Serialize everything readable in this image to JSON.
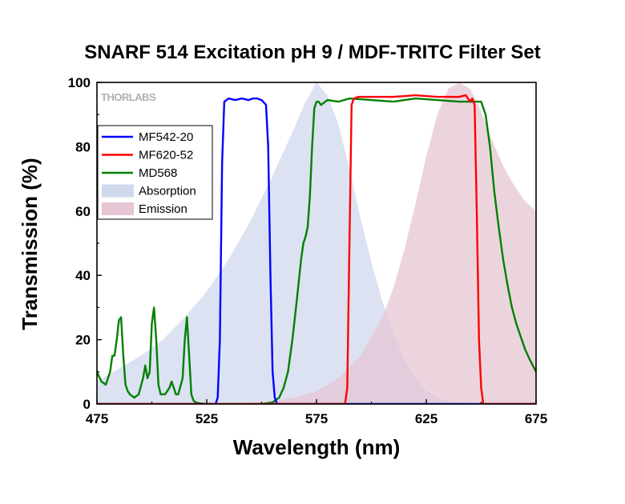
{
  "chart_data": {
    "type": "area",
    "title": "SNARF 514 Excitation pH 9 / MDF-TRITC Filter Set",
    "xlabel": "Wavelength (nm)",
    "ylabel": "Transmission (%)",
    "xlim": [
      475,
      675
    ],
    "ylim": [
      0,
      100
    ],
    "xticks": [
      475,
      525,
      575,
      625,
      675
    ],
    "yticks": [
      0,
      20,
      40,
      60,
      80,
      100
    ],
    "grid": false,
    "legend_position": "top-left",
    "watermark": "THORLABS",
    "series": [
      {
        "name": "MF542-20",
        "type": "line",
        "color": "#0000ff",
        "x": [
          475,
          529,
          530,
          531,
          532,
          533,
          535,
          538,
          541,
          544,
          546,
          548,
          550,
          552,
          553,
          554,
          555,
          556,
          557,
          675
        ],
        "y": [
          0,
          0,
          2,
          20,
          75,
          94,
          95,
          94.5,
          95,
          94.5,
          95,
          95,
          94.5,
          93,
          80,
          40,
          10,
          2,
          0,
          0
        ]
      },
      {
        "name": "MF620-52",
        "type": "line",
        "color": "#ff0000",
        "x": [
          475,
          588,
          589,
          590,
          591,
          592,
          594,
          600,
          610,
          620,
          630,
          640,
          643,
          645,
          646,
          647,
          648,
          649,
          650,
          651,
          675
        ],
        "y": [
          0,
          0,
          5,
          50,
          93,
          95,
          95.5,
          95.5,
          95.5,
          96,
          95.5,
          95.5,
          96,
          94,
          95,
          93,
          60,
          20,
          5,
          0,
          0
        ]
      },
      {
        "name": "MD568",
        "type": "line",
        "color": "#008000",
        "x": [
          475,
          477,
          479,
          481,
          482,
          483,
          484,
          485,
          486,
          487,
          488,
          489,
          490,
          492,
          494,
          496,
          497,
          498,
          499,
          500,
          501,
          502,
          503,
          504,
          506,
          508,
          509,
          510,
          511,
          512,
          514,
          515,
          516,
          517,
          518,
          519,
          520,
          522,
          525,
          530,
          535,
          540,
          545,
          550,
          555,
          558,
          560,
          562,
          564,
          566,
          568,
          569,
          570,
          571,
          572,
          573,
          574,
          575,
          576,
          577,
          580,
          585,
          590,
          600,
          610,
          620,
          630,
          640,
          645,
          650,
          652,
          654,
          656,
          658,
          660,
          662,
          664,
          666,
          668,
          670,
          672,
          675
        ],
        "y": [
          10,
          7,
          6,
          10,
          15,
          15,
          20,
          26,
          27,
          15,
          6,
          4,
          3,
          2,
          3,
          8,
          12,
          8,
          10,
          25,
          30,
          20,
          6,
          3,
          3,
          5,
          7,
          5,
          3,
          3,
          8,
          20,
          27,
          15,
          3,
          1,
          0.5,
          0.2,
          0,
          0,
          0,
          0,
          0,
          0,
          0.5,
          2,
          5,
          10,
          20,
          32,
          45,
          50,
          52,
          55,
          65,
          80,
          92,
          94,
          94,
          93,
          94.5,
          94,
          95,
          94.5,
          94,
          95,
          94.5,
          94,
          94,
          94,
          90,
          80,
          66,
          55,
          45,
          37,
          30,
          25,
          21,
          17,
          14,
          10
        ]
      },
      {
        "name": "Absorption",
        "type": "area",
        "color": "#d0d8ec",
        "x": [
          475,
          485,
          495,
          505,
          515,
          525,
          535,
          545,
          555,
          565,
          570,
          575,
          580,
          585,
          590,
          595,
          600,
          605,
          610,
          615,
          620,
          625,
          630,
          635,
          640,
          645,
          650,
          660,
          675
        ],
        "y": [
          7,
          11,
          15,
          20,
          27,
          35,
          45,
          57,
          71,
          86,
          94,
          100,
          96,
          87,
          73,
          58,
          44,
          32,
          22,
          14,
          8,
          4,
          2,
          1,
          0.5,
          0,
          0,
          0,
          0
        ]
      },
      {
        "name": "Emission",
        "type": "area",
        "color": "#e6c6d4",
        "x": [
          475,
          500,
          525,
          545,
          555,
          565,
          575,
          585,
          595,
          605,
          610,
          615,
          620,
          625,
          630,
          635,
          640,
          645,
          650,
          655,
          660,
          665,
          670,
          675
        ],
        "y": [
          0,
          0,
          0,
          0.3,
          1,
          2,
          4,
          8,
          15,
          27,
          36,
          48,
          62,
          77,
          90,
          98,
          100,
          98,
          91,
          82,
          74,
          68,
          63,
          60
        ]
      }
    ]
  }
}
